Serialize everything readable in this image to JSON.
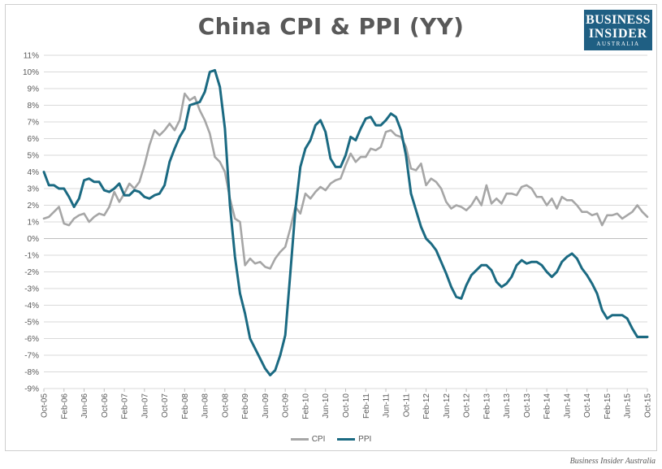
{
  "logo": {
    "line1": "BUSINESS",
    "line2": "INSIDER",
    "line3": "AUSTRALIA"
  },
  "credit": "Business Insider Australia",
  "colors": {
    "CPI": "#a6a6a6",
    "PPI": "#1b6a82",
    "grid": "#d9d9d9",
    "text": "#595959"
  },
  "chart_data": {
    "type": "line",
    "title": "China CPI & PPI (YY)",
    "xlabel": "",
    "ylabel": "",
    "ylim": [
      -9,
      11
    ],
    "yticks": [
      "11%",
      "10%",
      "9%",
      "8%",
      "7%",
      "6%",
      "5%",
      "4%",
      "3%",
      "2%",
      "1%",
      "0%",
      "-1%",
      "-2%",
      "-3%",
      "-4%",
      "-5%",
      "-6%",
      "-7%",
      "-8%",
      "-9%"
    ],
    "grid": true,
    "legend": "bottom",
    "x_start": "Oct-05",
    "xticks": [
      "Oct-05",
      "Feb-06",
      "Jun-06",
      "Oct-06",
      "Feb-07",
      "Jun-07",
      "Oct-07",
      "Feb-08",
      "Jun-08",
      "Oct-08",
      "Feb-09",
      "Jun-09",
      "Oct-09",
      "Feb-10",
      "Jun-10",
      "Oct-10",
      "Feb-11",
      "Jun-11",
      "Oct-11",
      "Feb-12",
      "Jun-12",
      "Oct-12",
      "Feb-13",
      "Jun-13",
      "Oct-13",
      "Feb-14",
      "Jun-14",
      "Oct-14",
      "Feb-15",
      "Jun-15",
      "Oct-15"
    ],
    "series": [
      {
        "name": "CPI",
        "values": [
          1.2,
          1.3,
          1.6,
          1.9,
          0.9,
          0.8,
          1.2,
          1.4,
          1.5,
          1.0,
          1.3,
          1.5,
          1.4,
          1.9,
          2.8,
          2.2,
          2.7,
          3.3,
          3.0,
          3.4,
          4.4,
          5.6,
          6.5,
          6.2,
          6.5,
          6.9,
          6.5,
          7.1,
          8.7,
          8.3,
          8.5,
          7.7,
          7.1,
          6.3,
          4.9,
          4.6,
          4.0,
          2.4,
          1.2,
          1.0,
          -1.6,
          -1.2,
          -1.5,
          -1.4,
          -1.7,
          -1.8,
          -1.2,
          -0.8,
          -0.5,
          0.6,
          1.9,
          1.5,
          2.7,
          2.4,
          2.8,
          3.1,
          2.9,
          3.3,
          3.5,
          3.6,
          4.4,
          5.1,
          4.6,
          4.9,
          4.9,
          5.4,
          5.3,
          5.5,
          6.4,
          6.5,
          6.2,
          6.1,
          5.5,
          4.2,
          4.1,
          4.5,
          3.2,
          3.6,
          3.4,
          3.0,
          2.2,
          1.8,
          2.0,
          1.9,
          1.7,
          2.0,
          2.5,
          2.0,
          3.2,
          2.1,
          2.4,
          2.1,
          2.7,
          2.7,
          2.6,
          3.1,
          3.2,
          3.0,
          2.5,
          2.5,
          2.0,
          2.4,
          1.8,
          2.5,
          2.3,
          2.3,
          2.0,
          1.6,
          1.6,
          1.4,
          1.5,
          0.8,
          1.4,
          1.4,
          1.5,
          1.2,
          1.4,
          1.6,
          2.0,
          1.6,
          1.3
        ]
      },
      {
        "name": "PPI",
        "values": [
          4.0,
          3.2,
          3.2,
          3.0,
          3.0,
          2.5,
          1.9,
          2.4,
          3.5,
          3.6,
          3.4,
          3.4,
          2.9,
          2.8,
          3.0,
          3.3,
          2.6,
          2.6,
          2.9,
          2.8,
          2.5,
          2.4,
          2.6,
          2.7,
          3.2,
          4.6,
          5.4,
          6.1,
          6.6,
          8.0,
          8.1,
          8.2,
          8.8,
          10.0,
          10.1,
          9.1,
          6.6,
          2.0,
          -1.1,
          -3.3,
          -4.5,
          -6.0,
          -6.6,
          -7.2,
          -7.8,
          -8.2,
          -7.9,
          -7.0,
          -5.8,
          -2.1,
          1.7,
          4.3,
          5.4,
          5.9,
          6.8,
          7.1,
          6.4,
          4.8,
          4.3,
          4.3,
          5.0,
          6.1,
          5.9,
          6.6,
          7.2,
          7.3,
          6.8,
          6.8,
          7.1,
          7.5,
          7.3,
          6.5,
          5.0,
          2.7,
          1.7,
          0.7,
          0.0,
          -0.3,
          -0.7,
          -1.4,
          -2.1,
          -2.9,
          -3.5,
          -3.6,
          -2.8,
          -2.2,
          -1.9,
          -1.6,
          -1.6,
          -1.9,
          -2.6,
          -2.9,
          -2.7,
          -2.3,
          -1.6,
          -1.3,
          -1.5,
          -1.4,
          -1.4,
          -1.6,
          -2.0,
          -2.3,
          -2.0,
          -1.4,
          -1.1,
          -0.9,
          -1.2,
          -1.8,
          -2.2,
          -2.7,
          -3.3,
          -4.3,
          -4.8,
          -4.6,
          -4.6,
          -4.6,
          -4.8,
          -5.4,
          -5.9,
          -5.9,
          -5.9
        ]
      }
    ]
  }
}
